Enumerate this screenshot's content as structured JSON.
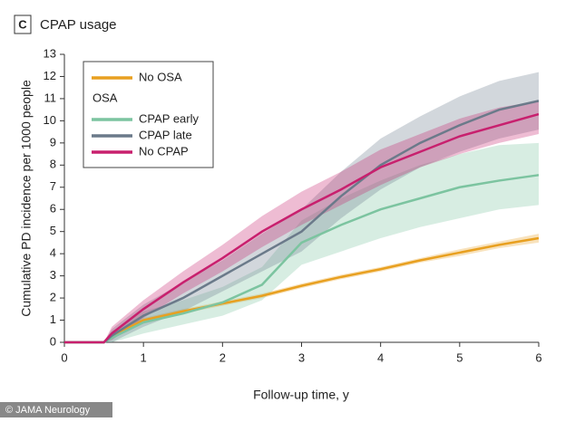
{
  "chart_data": {
    "type": "line",
    "panel_label": "C",
    "title": "CPAP usage",
    "xlabel": "Follow-up time, y",
    "ylabel": "Cumulative PD incidence per 1000 people",
    "source": "© JAMA Neurology",
    "legend_group": "OSA",
    "x": [
      0,
      0.5,
      0.6,
      1,
      1.5,
      2,
      2.5,
      3,
      3.5,
      4,
      4.5,
      5,
      5.5,
      6
    ],
    "xlim": [
      0,
      6
    ],
    "xticks": [
      0,
      1,
      2,
      3,
      4,
      5,
      6
    ],
    "ylim": [
      0,
      13
    ],
    "yticks": [
      0,
      1,
      2,
      3,
      4,
      5,
      6,
      7,
      8,
      9,
      10,
      11,
      12,
      13
    ],
    "grid": false,
    "legend": "upper left",
    "series": [
      {
        "name": "No OSA",
        "color": "#e8a020",
        "values": [
          0,
          0,
          0.3,
          1.0,
          1.4,
          1.75,
          2.1,
          2.55,
          2.95,
          3.3,
          3.7,
          4.05,
          4.4,
          4.7
        ],
        "ci_lower": [
          0,
          0,
          0.2,
          0.9,
          1.3,
          1.65,
          2.0,
          2.45,
          2.85,
          3.2,
          3.6,
          3.9,
          4.25,
          4.5
        ],
        "ci_upper": [
          0,
          0,
          0.4,
          1.1,
          1.5,
          1.85,
          2.2,
          2.65,
          3.05,
          3.4,
          3.8,
          4.2,
          4.55,
          4.9
        ]
      },
      {
        "name": "CPAP early",
        "color": "#7cc4a0",
        "values": [
          0,
          0,
          0.2,
          0.9,
          1.3,
          1.8,
          2.6,
          4.5,
          5.3,
          6.0,
          6.5,
          7.0,
          7.3,
          7.55
        ],
        "ci_lower": [
          0,
          0,
          0,
          0.4,
          0.8,
          1.2,
          1.9,
          3.5,
          4.1,
          4.7,
          5.2,
          5.6,
          6.0,
          6.2
        ],
        "ci_upper": [
          0,
          0,
          0.5,
          1.4,
          1.9,
          2.5,
          3.4,
          5.5,
          6.5,
          7.3,
          8.0,
          8.5,
          8.9,
          9.0
        ]
      },
      {
        "name": "CPAP late",
        "color": "#6b7a8a",
        "values": [
          0,
          0,
          0.3,
          1.2,
          2.0,
          3.0,
          4.0,
          5.0,
          6.6,
          8.0,
          9.0,
          9.8,
          10.5,
          10.9
        ],
        "ci_lower": [
          0,
          0,
          0,
          0.7,
          1.4,
          2.3,
          3.2,
          4.1,
          5.6,
          6.9,
          7.9,
          8.6,
          9.2,
          9.6
        ],
        "ci_upper": [
          0,
          0,
          0.6,
          1.7,
          2.7,
          3.7,
          4.9,
          6.0,
          7.7,
          9.2,
          10.2,
          11.1,
          11.8,
          12.2
        ]
      },
      {
        "name": "No CPAP",
        "color": "#c8206e",
        "values": [
          0,
          0,
          0.4,
          1.5,
          2.7,
          3.8,
          5.0,
          6.0,
          6.9,
          7.9,
          8.6,
          9.3,
          9.8,
          10.3
        ],
        "ci_lower": [
          0,
          0,
          0.1,
          1.1,
          2.2,
          3.2,
          4.3,
          5.3,
          6.2,
          7.1,
          7.9,
          8.5,
          9.0,
          9.4
        ],
        "ci_upper": [
          0,
          0,
          0.7,
          1.9,
          3.2,
          4.4,
          5.7,
          6.8,
          7.7,
          8.7,
          9.4,
          10.1,
          10.6,
          10.9
        ]
      }
    ]
  }
}
